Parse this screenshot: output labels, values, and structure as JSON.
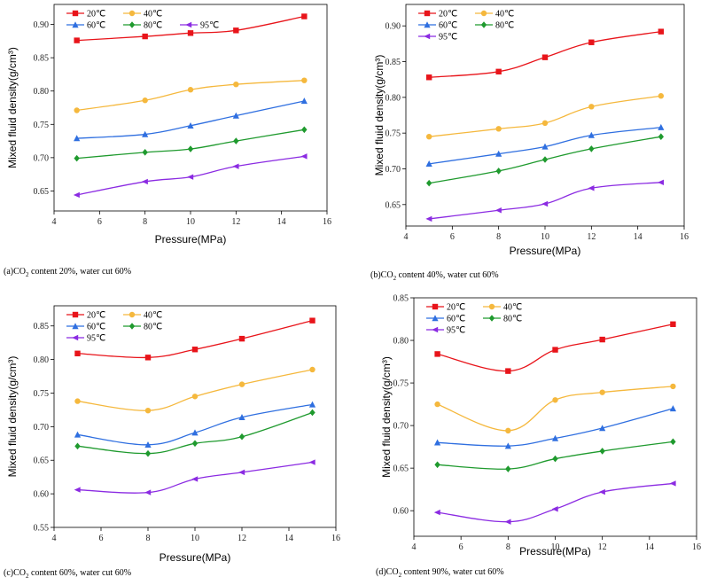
{
  "chart_data": [
    {
      "type": "line",
      "caption": {
        "prefix": "(a)CO",
        "sub": "2",
        "suffix": " content 20%, water cut 60%"
      },
      "xlabel": "Pressure(MPa)",
      "ylabel": "Mixed fluid density(g/cm³)",
      "xlim": [
        4,
        16
      ],
      "xticks": [
        4,
        6,
        8,
        10,
        12,
        14,
        16
      ],
      "ylim": [
        0.62,
        0.93
      ],
      "yticks": [
        0.65,
        0.7,
        0.75,
        0.8,
        0.85,
        0.9
      ],
      "legend_layout": "two-row",
      "x": [
        5,
        8,
        10,
        12,
        15
      ],
      "series": [
        {
          "name": "20℃",
          "marker": "square",
          "color": "#e8141a",
          "values": [
            0.876,
            0.882,
            0.887,
            0.891,
            0.912
          ]
        },
        {
          "name": "40℃",
          "marker": "circle",
          "color": "#f5b83d",
          "values": [
            0.771,
            0.786,
            0.802,
            0.81,
            0.816
          ]
        },
        {
          "name": "60℃",
          "marker": "triangle",
          "color": "#2f6fe0",
          "values": [
            0.729,
            0.735,
            0.748,
            0.763,
            0.785
          ]
        },
        {
          "name": "80℃",
          "marker": "diamond",
          "color": "#1f9a2e",
          "values": [
            0.699,
            0.708,
            0.713,
            0.725,
            0.742
          ]
        },
        {
          "name": "95℃",
          "marker": "left-triangle",
          "color": "#8b2be2",
          "values": [
            0.644,
            0.664,
            0.671,
            0.687,
            0.702
          ]
        }
      ]
    },
    {
      "type": "line",
      "caption": {
        "prefix": "(b)CO",
        "sub": "2",
        "suffix": " content 40%, water cut 60%"
      },
      "xlabel": "Pressure(MPa)",
      "ylabel": "Mixed fluid density(g/cm³)",
      "xlim": [
        4,
        16
      ],
      "xticks": [
        4,
        6,
        8,
        10,
        12,
        14,
        16
      ],
      "ylim": [
        0.62,
        0.93
      ],
      "yticks": [
        0.65,
        0.7,
        0.75,
        0.8,
        0.85,
        0.9
      ],
      "legend_layout": "stacked",
      "x": [
        5,
        8,
        10,
        12,
        15
      ],
      "series": [
        {
          "name": "20℃",
          "marker": "square",
          "color": "#e8141a",
          "values": [
            0.828,
            0.836,
            0.856,
            0.877,
            0.892
          ]
        },
        {
          "name": "40℃",
          "marker": "circle",
          "color": "#f5b83d",
          "values": [
            0.745,
            0.756,
            0.764,
            0.787,
            0.802
          ]
        },
        {
          "name": "60℃",
          "marker": "triangle",
          "color": "#2f6fe0",
          "values": [
            0.707,
            0.721,
            0.731,
            0.747,
            0.758
          ]
        },
        {
          "name": "80℃",
          "marker": "diamond",
          "color": "#1f9a2e",
          "values": [
            0.68,
            0.697,
            0.713,
            0.728,
            0.745
          ]
        },
        {
          "name": "95℃",
          "marker": "left-triangle",
          "color": "#8b2be2",
          "values": [
            0.63,
            0.642,
            0.651,
            0.673,
            0.681
          ]
        }
      ]
    },
    {
      "type": "line",
      "caption": {
        "prefix": "(c)CO",
        "sub": "2",
        "suffix": " content 60%, water cut 60%"
      },
      "xlabel": "Pressure(MPa)",
      "ylabel": "Mixed fluid density(g/cm³)",
      "xlim": [
        4,
        16
      ],
      "xticks": [
        4,
        6,
        8,
        10,
        12,
        14,
        16
      ],
      "ylim": [
        0.55,
        0.88
      ],
      "yticks": [
        0.55,
        0.6,
        0.65,
        0.7,
        0.75,
        0.8,
        0.85
      ],
      "legend_layout": "stacked",
      "x": [
        5,
        8,
        10,
        12,
        15
      ],
      "series": [
        {
          "name": "20℃",
          "marker": "square",
          "color": "#e8141a",
          "values": [
            0.809,
            0.803,
            0.815,
            0.831,
            0.858
          ]
        },
        {
          "name": "40℃",
          "marker": "circle",
          "color": "#f5b83d",
          "values": [
            0.738,
            0.724,
            0.745,
            0.763,
            0.785
          ]
        },
        {
          "name": "60℃",
          "marker": "triangle",
          "color": "#2f6fe0",
          "values": [
            0.688,
            0.673,
            0.691,
            0.714,
            0.733
          ]
        },
        {
          "name": "80℃",
          "marker": "diamond",
          "color": "#1f9a2e",
          "values": [
            0.671,
            0.66,
            0.675,
            0.685,
            0.721
          ]
        },
        {
          "name": "95℃",
          "marker": "left-triangle",
          "color": "#8b2be2",
          "values": [
            0.606,
            0.602,
            0.622,
            0.632,
            0.647
          ]
        }
      ]
    },
    {
      "type": "line",
      "caption": {
        "prefix": "(d)CO",
        "sub": "2",
        "suffix": " content 90%, water cut 60%"
      },
      "xlabel": "Pressure(MPa)",
      "ylabel": "Mixed fluid density(g/cm³)",
      "xlim": [
        4,
        16
      ],
      "xticks": [
        4,
        6,
        8,
        10,
        12,
        14,
        16
      ],
      "ylim": [
        0.57,
        0.85
      ],
      "yticks": [
        0.6,
        0.65,
        0.7,
        0.75,
        0.8,
        0.85
      ],
      "legend_layout": "stacked",
      "x": [
        5,
        8,
        10,
        12,
        15
      ],
      "series": [
        {
          "name": "20℃",
          "marker": "square",
          "color": "#e8141a",
          "values": [
            0.784,
            0.764,
            0.789,
            0.801,
            0.819
          ]
        },
        {
          "name": "40℃",
          "marker": "circle",
          "color": "#f5b83d",
          "values": [
            0.725,
            0.694,
            0.73,
            0.739,
            0.746
          ]
        },
        {
          "name": "60℃",
          "marker": "triangle",
          "color": "#2f6fe0",
          "values": [
            0.68,
            0.676,
            0.685,
            0.697,
            0.72
          ]
        },
        {
          "name": "80℃",
          "marker": "diamond",
          "color": "#1f9a2e",
          "values": [
            0.654,
            0.649,
            0.661,
            0.67,
            0.681
          ]
        },
        {
          "name": "95℃",
          "marker": "left-triangle",
          "color": "#8b2be2",
          "values": [
            0.598,
            0.587,
            0.602,
            0.622,
            0.632
          ]
        }
      ]
    }
  ]
}
